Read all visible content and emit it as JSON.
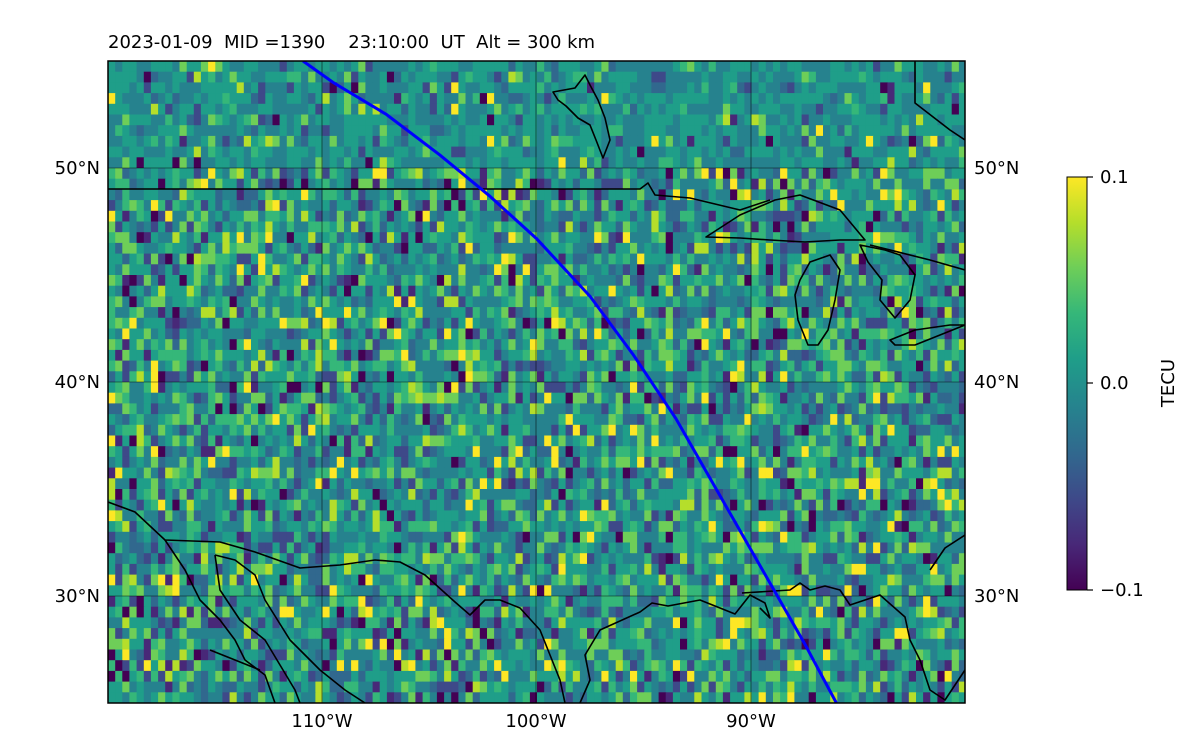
{
  "title": "2023-01-09  MID =1390    23:10:00  UT  Alt = 300 km",
  "map": {
    "lon_range": [
      -120,
      -80
    ],
    "lat_range": [
      25,
      55
    ],
    "gridlines_lon": [
      -110,
      -100,
      -90
    ],
    "gridlines_lat": [
      30,
      40,
      50
    ],
    "x_ticks": [
      "110°W",
      "100°W",
      "90°W"
    ],
    "y_ticks_left": [
      "30°N",
      "40°N",
      "50°N"
    ],
    "y_ticks_right": [
      "30°N",
      "40°N",
      "50°N"
    ],
    "projection": "PlateCarree",
    "coastline_color": "#000000",
    "track_color": "#0000ff",
    "satellite_track": [
      [
        -110.9,
        55.0
      ],
      [
        -109.5,
        54.0
      ],
      [
        -107.0,
        52.5
      ],
      [
        -104.5,
        50.6
      ],
      [
        -102.2,
        48.7
      ],
      [
        -100.0,
        46.7
      ],
      [
        -97.5,
        44.0
      ],
      [
        -95.5,
        41.3
      ],
      [
        -93.5,
        38.3
      ],
      [
        -91.5,
        34.8
      ],
      [
        -89.5,
        31.3
      ],
      [
        -87.5,
        27.8
      ],
      [
        -86.0,
        25.0
      ]
    ]
  },
  "colorbar": {
    "label": "TECU",
    "min": -0.1,
    "max": 0.1,
    "ticks": [
      "0.1",
      "0.0",
      "−0.1"
    ],
    "colormap": "viridis",
    "colormap_stops": [
      "#440154",
      "#482878",
      "#3e4989",
      "#31688e",
      "#26828e",
      "#1f9e89",
      "#35b779",
      "#6ece58",
      "#b5de2b",
      "#fde725"
    ]
  }
}
